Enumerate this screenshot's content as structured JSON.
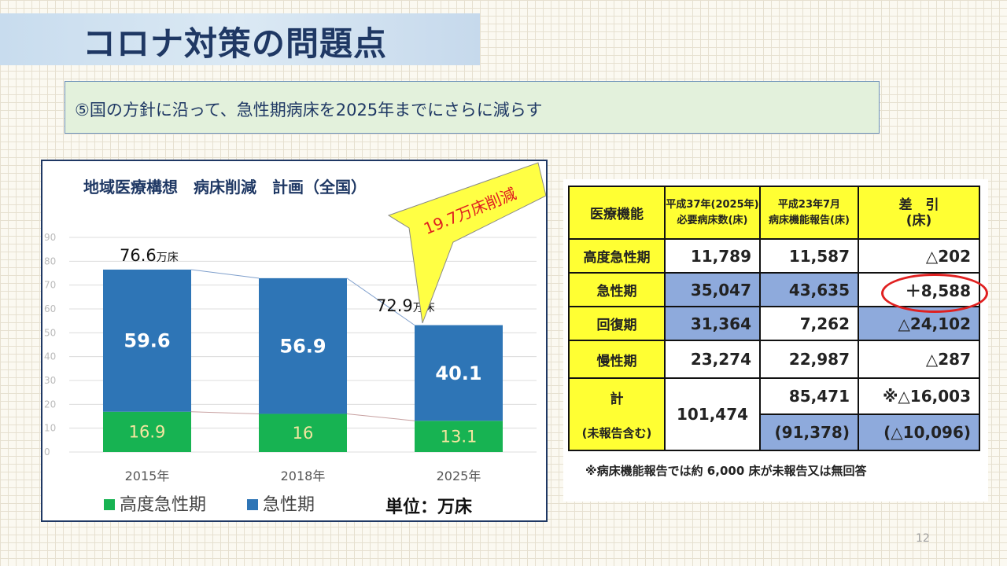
{
  "slide": {
    "title": "コロナ対策の問題点",
    "subtitle": "⑤国の方針に沿って、急性期病床を2025年までにさらに減らす",
    "page_number": "12"
  },
  "chart_data": {
    "type": "bar",
    "stacked": true,
    "title": "地域医療構想　病床削減　計画（全国）",
    "categories": [
      "2015年",
      "2018年",
      "2025年"
    ],
    "series": [
      {
        "name": "高度急性期",
        "color": "#17b352",
        "values": [
          16.9,
          16.0,
          13.1
        ]
      },
      {
        "name": "急性期",
        "color": "#2e75b6",
        "values": [
          59.6,
          56.9,
          40.1
        ]
      }
    ],
    "ylim": [
      0,
      90
    ],
    "yticks": [
      0,
      10,
      20,
      30,
      40,
      50,
      60,
      70,
      80,
      90
    ],
    "grid": true,
    "legend": "bottom",
    "unit_label": "単位：万床",
    "totals": [
      {
        "value": "76.6",
        "unit": "万床"
      },
      {
        "value": "72.9",
        "unit": "万床"
      }
    ],
    "callout": "19.7万床削減"
  },
  "table": {
    "headers": {
      "function": "医療機能",
      "required_line1": "平成37年(2025年)",
      "required_line2": "必要病床数(床)",
      "report_line1": "平成23年7月",
      "report_line2": "病床機能報告(床)",
      "diff_line1": "差　引",
      "diff_line2": "(床)"
    },
    "rows": [
      {
        "function": "高度急性期",
        "required": "11,789",
        "report": "11,587",
        "diff": "△202"
      },
      {
        "function": "急性期",
        "required": "35,047",
        "report": "43,635",
        "diff": "＋8,588"
      },
      {
        "function": "回復期",
        "required": "31,364",
        "report": "7,262",
        "diff": "△24,102"
      },
      {
        "function": "慢性期",
        "required": "23,274",
        "report": "22,987",
        "diff": "△287"
      }
    ],
    "total": {
      "label": "計",
      "label_sub": "(未報告含む)",
      "required": "101,474",
      "report": "85,471",
      "report_sub": "(91,378)",
      "diff": "※△16,003",
      "diff_sub": "(△10,096)"
    },
    "note": "※病床機能報告では約 6,000 床が未報告又は無回答"
  }
}
